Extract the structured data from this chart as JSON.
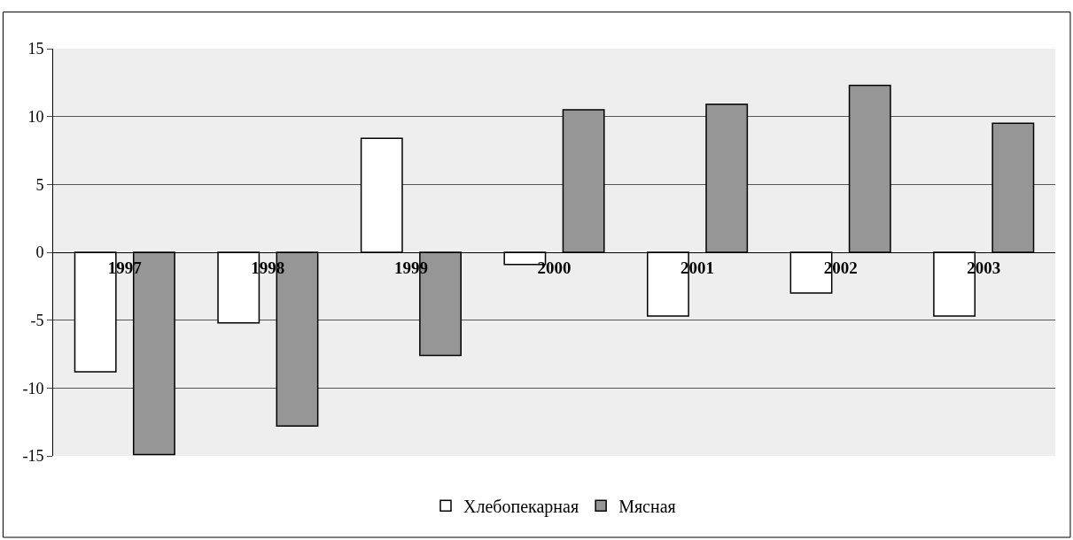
{
  "chart_data": {
    "type": "bar",
    "categories": [
      "1997",
      "1998",
      "1999",
      "2000",
      "2001",
      "2002",
      "2003"
    ],
    "series": [
      {
        "name": "Хлебопекарная",
        "color": "#ffffff",
        "values": [
          -8.8,
          -5.2,
          8.4,
          -0.9,
          -4.7,
          -3.0,
          -4.7
        ]
      },
      {
        "name": "Мясная",
        "color": "#969696",
        "values": [
          -14.9,
          -12.8,
          -7.6,
          10.5,
          10.9,
          12.3,
          9.5
        ]
      }
    ],
    "ylim": [
      -15,
      15
    ],
    "yticks": [
      -15,
      -10,
      -5,
      0,
      5,
      10,
      15
    ],
    "grid": "y",
    "legend": "bottom"
  }
}
